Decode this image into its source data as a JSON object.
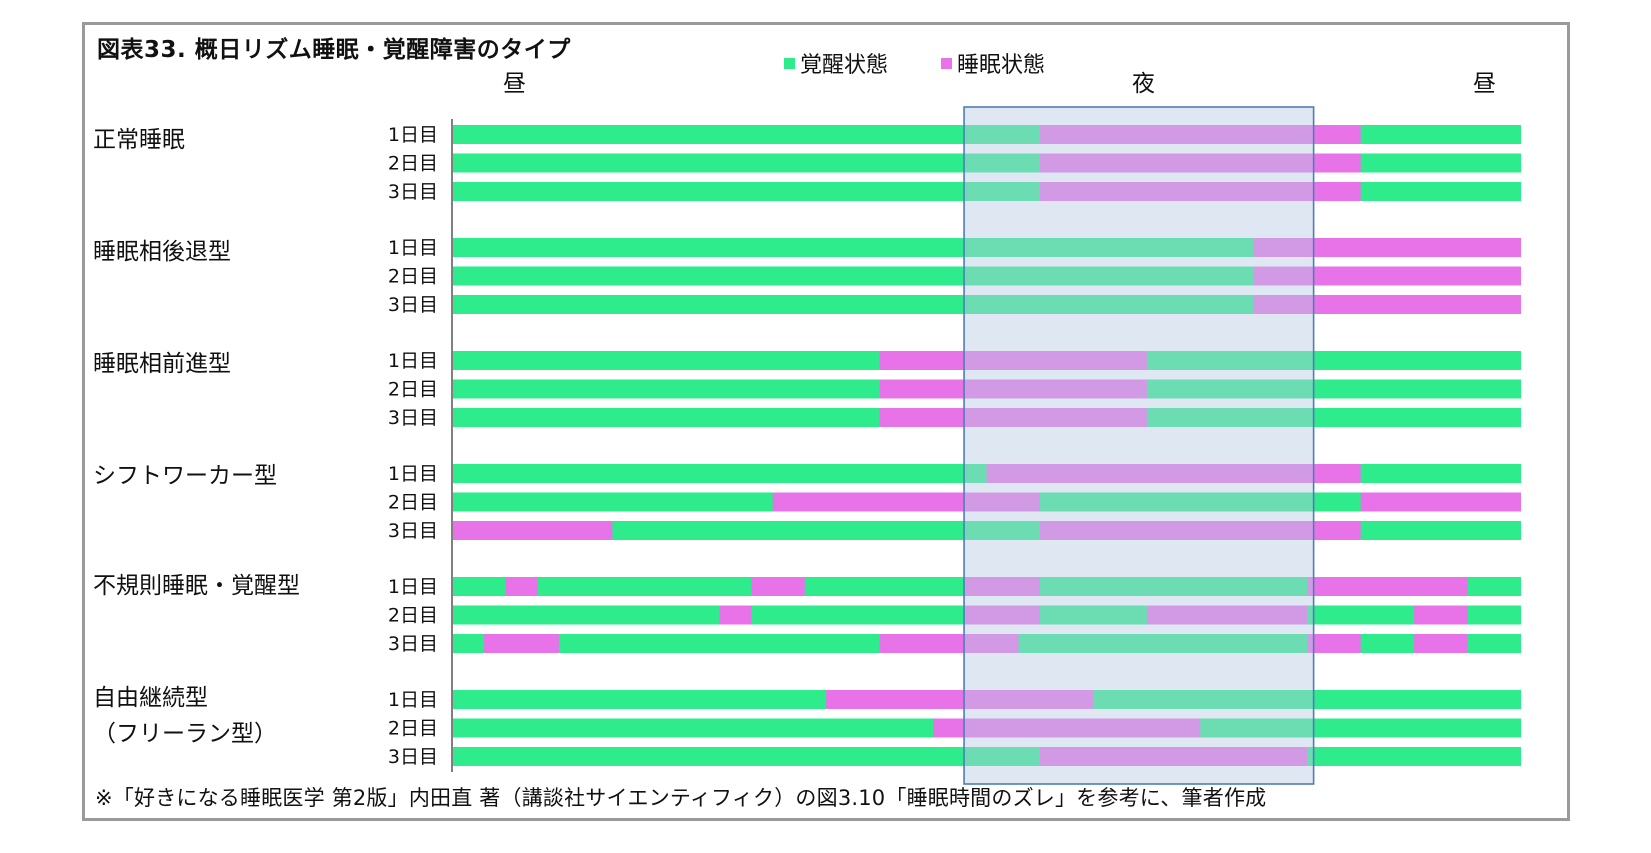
{
  "title": "図表33. 概日リズム睡眠・覚醒障害のタイプ",
  "legend": [
    {
      "label": "覚醒状態",
      "color": "#2EEB8C"
    },
    {
      "label": "睡眠状態",
      "color": "#E872E8"
    }
  ],
  "periods": {
    "left": "昼",
    "center": "夜",
    "right": "昼"
  },
  "footnote": "※「好きになる睡眠医学 第2版」内田直 著（講談社サイエンティフィク）の図3.10「睡眠時間のズレ」を参考に、筆者作成",
  "colors": {
    "awake": "#2EEB8C",
    "sleep": "#E872E8",
    "night_band": "#B9CBE3",
    "night_border": "#4F7DB8",
    "axis": "#808080"
  },
  "chart_data": {
    "type": "timeline",
    "title": "図表33. 概日リズム睡眠・覚醒障害のタイプ",
    "x_unit": "fraction of timeline (0 = left 昼, 1 = right 昼)",
    "night_range": [
      0.479,
      0.806
    ],
    "groups": [
      {
        "label": [
          "正常睡眠"
        ],
        "days": [
          {
            "day": "1日目",
            "sleep": [
              [
                0.55,
                0.85
              ]
            ]
          },
          {
            "day": "2日目",
            "sleep": [
              [
                0.55,
                0.85
              ]
            ]
          },
          {
            "day": "3日目",
            "sleep": [
              [
                0.55,
                0.85
              ]
            ]
          }
        ]
      },
      {
        "label": [
          "睡眠相後退型"
        ],
        "days": [
          {
            "day": "1日目",
            "sleep": [
              [
                0.75,
                1.0
              ]
            ]
          },
          {
            "day": "2日目",
            "sleep": [
              [
                0.75,
                1.0
              ]
            ]
          },
          {
            "day": "3日目",
            "sleep": [
              [
                0.75,
                1.0
              ]
            ]
          }
        ]
      },
      {
        "label": [
          "睡眠相前進型"
        ],
        "days": [
          {
            "day": "1日目",
            "sleep": [
              [
                0.4,
                0.65
              ]
            ]
          },
          {
            "day": "2日目",
            "sleep": [
              [
                0.4,
                0.65
              ]
            ]
          },
          {
            "day": "3日目",
            "sleep": [
              [
                0.4,
                0.65
              ]
            ]
          }
        ]
      },
      {
        "label": [
          "シフトワーカー型"
        ],
        "days": [
          {
            "day": "1日目",
            "sleep": [
              [
                0.5,
                0.85
              ]
            ]
          },
          {
            "day": "2日目",
            "sleep": [
              [
                0.3,
                0.55
              ],
              [
                0.85,
                1.0
              ]
            ]
          },
          {
            "day": "3日目",
            "sleep": [
              [
                0.0,
                0.15
              ],
              [
                0.55,
                0.85
              ]
            ]
          }
        ]
      },
      {
        "label": [
          "不規則睡眠・覚醒型"
        ],
        "days": [
          {
            "day": "1日目",
            "sleep": [
              [
                0.05,
                0.08
              ],
              [
                0.28,
                0.33
              ],
              [
                0.48,
                0.55
              ],
              [
                0.8,
                0.95
              ]
            ]
          },
          {
            "day": "2日目",
            "sleep": [
              [
                0.25,
                0.28
              ],
              [
                0.48,
                0.55
              ],
              [
                0.65,
                0.8
              ],
              [
                0.9,
                0.95
              ]
            ]
          },
          {
            "day": "3日目",
            "sleep": [
              [
                0.03,
                0.1
              ],
              [
                0.4,
                0.53
              ],
              [
                0.8,
                0.85
              ],
              [
                0.9,
                0.95
              ]
            ]
          }
        ]
      },
      {
        "label": [
          "自由継続型",
          "（フリーラン型）"
        ],
        "days": [
          {
            "day": "1日目",
            "sleep": [
              [
                0.35,
                0.6
              ]
            ]
          },
          {
            "day": "2日目",
            "sleep": [
              [
                0.45,
                0.7
              ]
            ]
          },
          {
            "day": "3日目",
            "sleep": [
              [
                0.55,
                0.8
              ]
            ]
          }
        ]
      }
    ]
  }
}
